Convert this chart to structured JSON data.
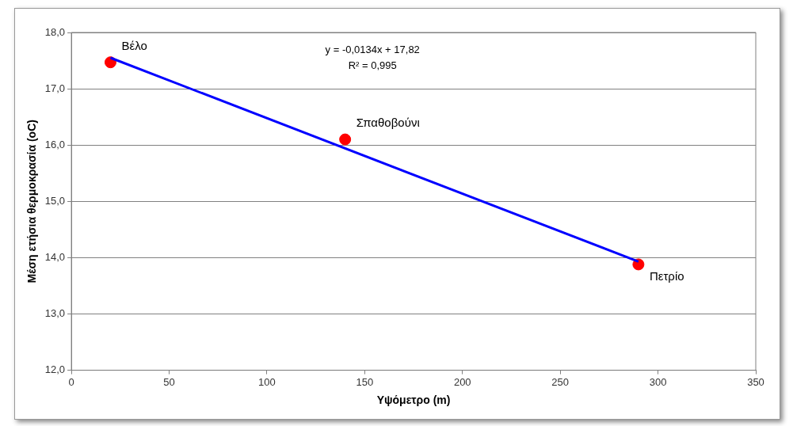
{
  "chart_data": {
    "type": "scatter",
    "xlabel": "Υψόμετρο (m)",
    "ylabel": "Μέση ετήσια θερμοκρασία (oC)",
    "series": [
      {
        "type": "scatter",
        "color": "#ff0000",
        "x": [
          20,
          140,
          290
        ],
        "values": [
          17.47,
          16.1,
          13.88
        ],
        "marker": "circle"
      },
      {
        "type": "line",
        "color": "#0000ff",
        "x": [
          20,
          290
        ],
        "values": [
          17.55,
          13.93
        ],
        "marker": "none",
        "line_style": "solid"
      }
    ],
    "xlim": [
      0,
      350
    ],
    "xticks": [
      0,
      50,
      100,
      150,
      200,
      250,
      300,
      350
    ],
    "ylim": [
      12,
      18
    ],
    "yticks": [
      {
        "value": 12,
        "label": "12,0"
      },
      {
        "value": 13,
        "label": "13,0"
      },
      {
        "value": 14,
        "label": "14,0"
      },
      {
        "value": 15,
        "label": "15,0"
      },
      {
        "value": 16,
        "label": "16,0"
      },
      {
        "value": 17,
        "label": "17,0"
      },
      {
        "value": 18,
        "label": "18,0"
      }
    ],
    "grid": "y",
    "annotations": [
      {
        "text": "Βέλο",
        "x": 20,
        "y": 17.47
      },
      {
        "text": "Σπαθοβούνι",
        "x": 140,
        "y": 16.1
      },
      {
        "text": "Πετρίο",
        "x": 290,
        "y": 13.88
      },
      "y = -0,0134x + 17,82",
      "R² = 0,995"
    ]
  }
}
